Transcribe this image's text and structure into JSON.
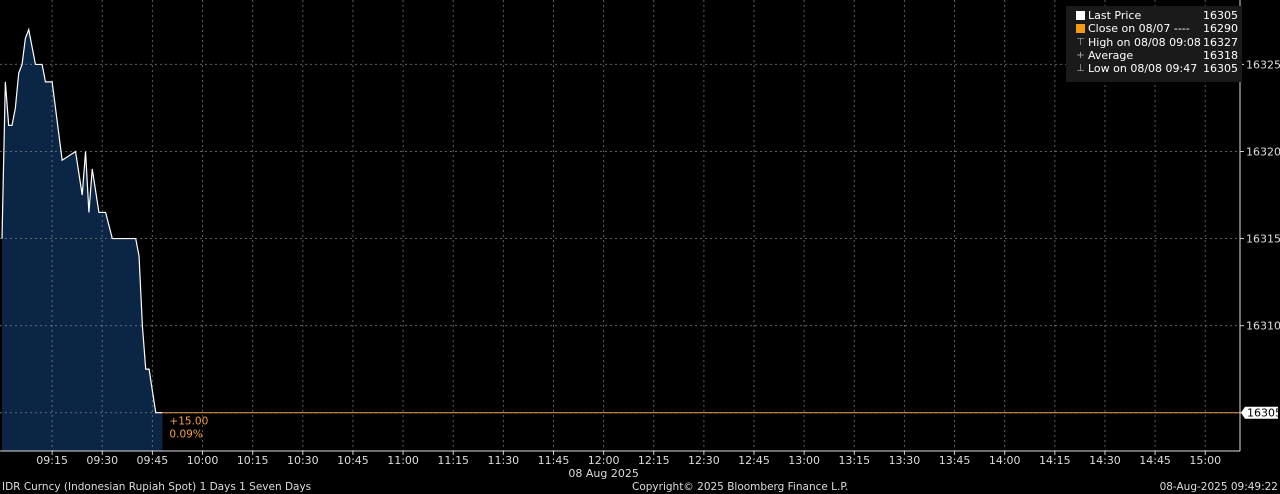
{
  "chart_data": {
    "type": "area",
    "title": "",
    "xlabel": "08 Aug 2025",
    "ylabel": "",
    "x_ticks": [
      "09:15",
      "09:30",
      "09:45",
      "10:00",
      "10:15",
      "10:30",
      "10:45",
      "11:00",
      "11:15",
      "11:30",
      "11:45",
      "12:00",
      "12:15",
      "12:30",
      "12:45",
      "13:00",
      "13:15",
      "13:30",
      "13:45",
      "14:00",
      "14:15",
      "14:30",
      "14:45",
      "15:00"
    ],
    "y_ticks": [
      16305,
      16310,
      16315,
      16320,
      16325
    ],
    "xlim": [
      "09:00",
      "15:11"
    ],
    "ylim": [
      16302.8,
      16328.7
    ],
    "grid": true,
    "legend_position": "top-right",
    "series": [
      {
        "name": "Last Price",
        "color": "#ffffff",
        "fill": "#0b2545",
        "x": [
          "09:00",
          "09:01",
          "09:02",
          "09:03",
          "09:04",
          "09:05",
          "09:06",
          "09:07",
          "09:08",
          "09:10",
          "09:12",
          "09:13",
          "09:15",
          "09:18",
          "09:22",
          "09:24",
          "09:25",
          "09:26",
          "09:27",
          "09:29",
          "09:31",
          "09:33",
          "09:40",
          "09:41",
          "09:42",
          "09:43",
          "09:44",
          "09:46",
          "09:48"
        ],
        "y": [
          16315,
          16324,
          16321.5,
          16321.5,
          16322.5,
          16324.5,
          16325,
          16326.5,
          16327,
          16325,
          16325,
          16324,
          16324,
          16319.5,
          16320,
          16317.5,
          16320,
          16316.5,
          16319,
          16316.5,
          16316.5,
          16315,
          16315,
          16314,
          16310,
          16307.5,
          16307.5,
          16305,
          16305
        ]
      }
    ],
    "last_price_line": {
      "value": 16305,
      "color": "#e8a050",
      "label": "16305"
    },
    "change_annotation": {
      "abs": "+15.00",
      "pct": "0.09%",
      "color": "#f0a040"
    }
  },
  "legend": [
    {
      "icon": "white-square",
      "label": "Last Price",
      "value": "16305",
      "color": "#ffffff"
    },
    {
      "icon": "orange-square",
      "label": "Close on 08/07 ----",
      "value": "16290",
      "color": "#f39c12"
    },
    {
      "icon": "high-marker",
      "label": "High on 08/08 09:08",
      "value": "16327"
    },
    {
      "icon": "average-marker",
      "label": "Average",
      "value": "16318"
    },
    {
      "icon": "low-marker",
      "label": "Low on 08/08 09:47",
      "value": "16305"
    }
  ],
  "footer": {
    "security": "IDR Curncy (Indonesian Rupiah Spot) 1 Days 1 Seven Days",
    "copyright": "Copyright© 2025 Bloomberg Finance L.P.",
    "timestamp": "08-Aug-2025 09:49:22"
  }
}
